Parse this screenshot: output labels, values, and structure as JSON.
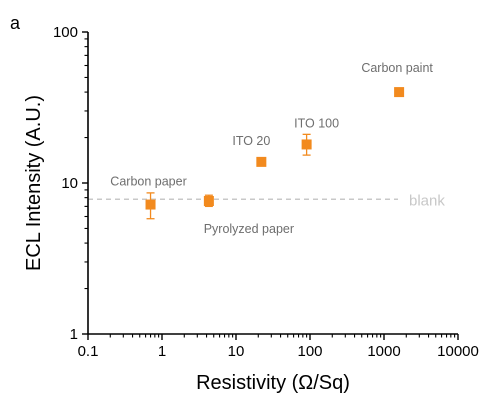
{
  "panel_label": "a",
  "chart_data": {
    "type": "scatter",
    "xlabel": "Resistivity (Ω/Sq)",
    "ylabel": "ECL Intensity (A.U.)",
    "x_scale": "log",
    "y_scale": "log",
    "xlim": [
      0.1,
      10000
    ],
    "ylim": [
      1,
      100
    ],
    "x_ticks": [
      {
        "value": 0.1,
        "label": "0.1"
      },
      {
        "value": 1,
        "label": "1"
      },
      {
        "value": 10,
        "label": "10"
      },
      {
        "value": 100,
        "label": "100"
      },
      {
        "value": 1000,
        "label": "1000"
      },
      {
        "value": 10000,
        "label": "10000"
      }
    ],
    "y_ticks": [
      {
        "value": 1,
        "label": "1"
      },
      {
        "value": 10,
        "label": "10"
      },
      {
        "value": 100,
        "label": "100"
      }
    ],
    "grid": false,
    "marker_color": "#F28A1E",
    "label_color": "#6E6E6E",
    "points": [
      {
        "label": "Carbon paper",
        "x": 0.7,
        "y": 7.2,
        "y_low": 5.8,
        "y_high": 8.6
      },
      {
        "label": "Pyrolyzed paper",
        "x": 4.3,
        "y": 7.6,
        "y_low": 7.0,
        "y_high": 8.3
      },
      {
        "label": "ITO 20",
        "x": 22,
        "y": 13.8,
        "y_low": 13.8,
        "y_high": 13.8
      },
      {
        "label": "ITO 100",
        "x": 90,
        "y": 18,
        "y_low": 15.3,
        "y_high": 21
      },
      {
        "label": "Carbon paint",
        "x": 1600,
        "y": 40,
        "y_low": 40,
        "y_high": 40
      }
    ],
    "reference_line": {
      "label": "blank",
      "y": 7.8,
      "color": "#C8C8C8"
    }
  }
}
